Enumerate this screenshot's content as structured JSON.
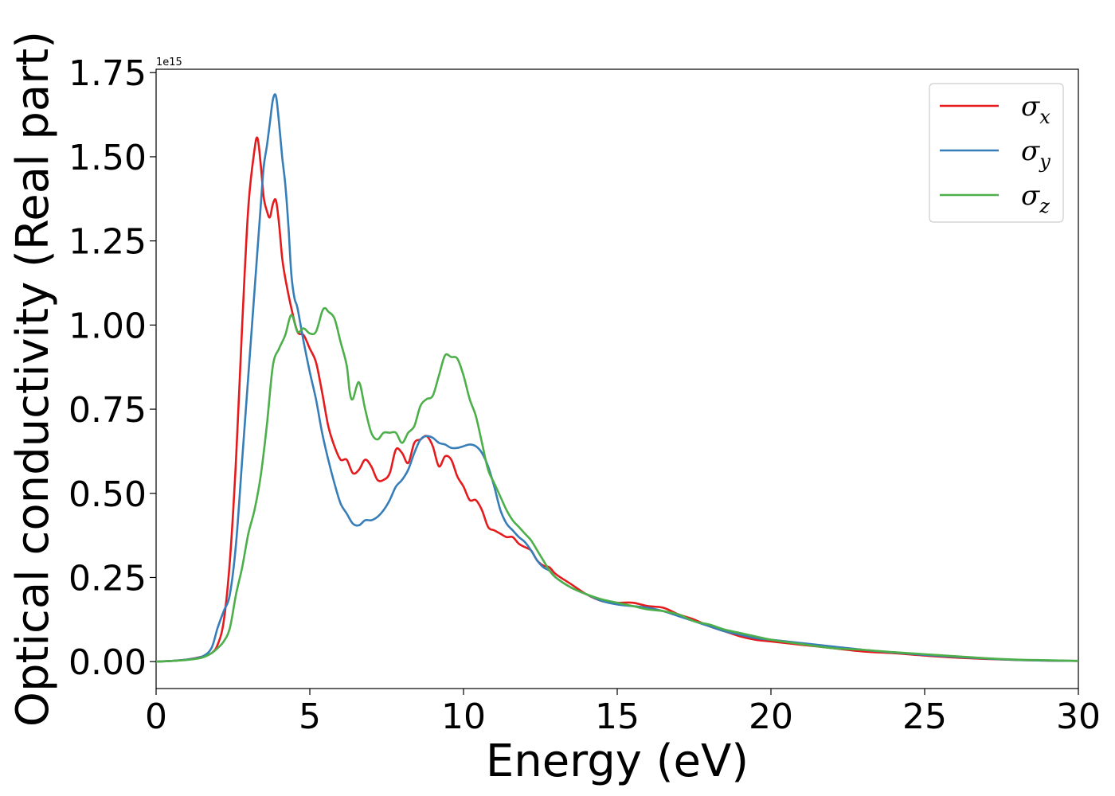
{
  "chart_data": {
    "type": "line",
    "xlabel": "Energy (eV)",
    "ylabel": "Optical conductivity (Real part)",
    "y_offset_text": "1e15",
    "xlim": [
      0,
      30
    ],
    "ylim": [
      -0.08,
      1.76
    ],
    "x_ticks": [
      0,
      5,
      10,
      15,
      20,
      25,
      30
    ],
    "x_tick_labels": [
      "0",
      "5",
      "10",
      "15",
      "20",
      "25",
      "30"
    ],
    "y_ticks": [
      0.0,
      0.25,
      0.5,
      0.75,
      1.0,
      1.25,
      1.5,
      1.75
    ],
    "y_tick_labels": [
      "0.00",
      "0.25",
      "0.50",
      "0.75",
      "1.00",
      "1.25",
      "1.50",
      "1.75"
    ],
    "grid": false,
    "legend_position": "top-right",
    "series": [
      {
        "name": "σx",
        "label_base": "σ",
        "label_sub": "x",
        "color": "#e41a1c",
        "x": [
          0,
          0.5,
          1.0,
          1.5,
          1.8,
          2.0,
          2.2,
          2.4,
          2.6,
          2.8,
          3.0,
          3.2,
          3.3,
          3.4,
          3.5,
          3.6,
          3.7,
          3.8,
          3.9,
          4.0,
          4.1,
          4.2,
          4.4,
          4.6,
          4.8,
          5.0,
          5.2,
          5.4,
          5.6,
          5.8,
          6.0,
          6.2,
          6.4,
          6.6,
          6.8,
          7.0,
          7.2,
          7.4,
          7.6,
          7.8,
          8.0,
          8.2,
          8.4,
          8.6,
          8.8,
          9.0,
          9.2,
          9.4,
          9.6,
          9.8,
          10.0,
          10.2,
          10.4,
          10.6,
          10.8,
          11.0,
          11.2,
          11.4,
          11.6,
          11.8,
          12.0,
          12.2,
          12.4,
          12.6,
          12.8,
          13.0,
          13.5,
          14.0,
          14.5,
          15.0,
          15.5,
          16.0,
          16.5,
          17.0,
          17.5,
          18.0,
          18.5,
          19.0,
          19.5,
          20.0,
          21.0,
          22.0,
          23.0,
          24.0,
          25.0,
          26.0,
          27.0,
          28.0,
          29.0,
          30.0
        ],
        "values": [
          0.0,
          0.002,
          0.006,
          0.015,
          0.025,
          0.05,
          0.12,
          0.3,
          0.6,
          1.0,
          1.35,
          1.52,
          1.555,
          1.48,
          1.38,
          1.34,
          1.32,
          1.36,
          1.37,
          1.3,
          1.2,
          1.14,
          1.05,
          0.98,
          0.97,
          0.93,
          0.89,
          0.8,
          0.7,
          0.64,
          0.6,
          0.6,
          0.56,
          0.57,
          0.6,
          0.58,
          0.54,
          0.54,
          0.56,
          0.63,
          0.62,
          0.59,
          0.65,
          0.66,
          0.67,
          0.64,
          0.58,
          0.61,
          0.6,
          0.55,
          0.52,
          0.48,
          0.48,
          0.45,
          0.4,
          0.39,
          0.38,
          0.37,
          0.37,
          0.35,
          0.34,
          0.33,
          0.3,
          0.285,
          0.28,
          0.26,
          0.23,
          0.2,
          0.18,
          0.175,
          0.175,
          0.165,
          0.16,
          0.14,
          0.125,
          0.105,
          0.09,
          0.075,
          0.065,
          0.06,
          0.05,
          0.04,
          0.03,
          0.025,
          0.018,
          0.012,
          0.008,
          0.005,
          0.003,
          0.002
        ]
      },
      {
        "name": "σy",
        "label_base": "σ",
        "label_sub": "y",
        "color": "#377eb8",
        "x": [
          0,
          0.5,
          1.0,
          1.5,
          1.8,
          2.0,
          2.2,
          2.4,
          2.6,
          2.8,
          3.0,
          3.2,
          3.4,
          3.5,
          3.6,
          3.7,
          3.8,
          3.9,
          4.0,
          4.1,
          4.2,
          4.3,
          4.4,
          4.5,
          4.6,
          4.8,
          5.0,
          5.2,
          5.4,
          5.6,
          5.8,
          6.0,
          6.2,
          6.4,
          6.6,
          6.8,
          7.0,
          7.2,
          7.4,
          7.6,
          7.8,
          8.0,
          8.2,
          8.4,
          8.6,
          8.8,
          9.0,
          9.2,
          9.4,
          9.6,
          9.8,
          10.0,
          10.2,
          10.4,
          10.6,
          10.8,
          11.0,
          11.2,
          11.4,
          11.6,
          11.8,
          12.0,
          12.2,
          12.4,
          12.6,
          12.8,
          13.0,
          13.5,
          14.0,
          14.5,
          15.0,
          15.5,
          16.0,
          16.5,
          17.0,
          17.5,
          18.0,
          18.5,
          19.0,
          19.5,
          20.0,
          21.0,
          22.0,
          23.0,
          24.0,
          25.0,
          26.0,
          27.0,
          28.0,
          29.0,
          30.0
        ],
        "values": [
          0.0,
          0.002,
          0.006,
          0.015,
          0.04,
          0.1,
          0.15,
          0.2,
          0.35,
          0.6,
          0.85,
          1.1,
          1.35,
          1.47,
          1.53,
          1.6,
          1.67,
          1.68,
          1.6,
          1.5,
          1.42,
          1.3,
          1.15,
          1.08,
          1.05,
          0.95,
          0.86,
          0.78,
          0.68,
          0.6,
          0.53,
          0.47,
          0.44,
          0.41,
          0.405,
          0.42,
          0.42,
          0.43,
          0.45,
          0.48,
          0.52,
          0.54,
          0.57,
          0.62,
          0.66,
          0.67,
          0.665,
          0.65,
          0.645,
          0.635,
          0.635,
          0.64,
          0.645,
          0.64,
          0.62,
          0.58,
          0.52,
          0.45,
          0.41,
          0.39,
          0.37,
          0.355,
          0.33,
          0.3,
          0.28,
          0.27,
          0.25,
          0.22,
          0.2,
          0.18,
          0.17,
          0.165,
          0.16,
          0.15,
          0.135,
          0.12,
          0.105,
          0.09,
          0.08,
          0.07,
          0.065,
          0.055,
          0.045,
          0.035,
          0.027,
          0.02,
          0.014,
          0.009,
          0.005,
          0.003,
          0.002
        ]
      },
      {
        "name": "σz",
        "label_base": "σ",
        "label_sub": "z",
        "color": "#4daf4a",
        "x": [
          0,
          0.5,
          1.0,
          1.5,
          1.8,
          2.0,
          2.2,
          2.4,
          2.6,
          2.8,
          3.0,
          3.2,
          3.4,
          3.6,
          3.8,
          4.0,
          4.2,
          4.4,
          4.6,
          4.8,
          5.0,
          5.2,
          5.4,
          5.5,
          5.6,
          5.8,
          6.0,
          6.2,
          6.3,
          6.4,
          6.6,
          6.8,
          7.0,
          7.2,
          7.4,
          7.6,
          7.8,
          8.0,
          8.2,
          8.4,
          8.6,
          8.8,
          9.0,
          9.2,
          9.4,
          9.6,
          9.8,
          10.0,
          10.2,
          10.4,
          10.6,
          10.8,
          11.0,
          11.2,
          11.4,
          11.6,
          11.8,
          12.0,
          12.2,
          12.4,
          12.6,
          12.8,
          13.0,
          13.5,
          14.0,
          14.5,
          15.0,
          15.5,
          16.0,
          16.5,
          17.0,
          17.5,
          18.0,
          18.5,
          19.0,
          19.5,
          20.0,
          21.0,
          22.0,
          23.0,
          24.0,
          25.0,
          26.0,
          27.0,
          28.0,
          29.0,
          30.0
        ],
        "values": [
          0.0,
          0.002,
          0.005,
          0.012,
          0.025,
          0.04,
          0.06,
          0.1,
          0.2,
          0.28,
          0.38,
          0.45,
          0.55,
          0.7,
          0.88,
          0.93,
          0.97,
          1.03,
          0.98,
          0.99,
          0.975,
          0.98,
          1.04,
          1.05,
          1.04,
          1.02,
          0.95,
          0.88,
          0.8,
          0.78,
          0.83,
          0.75,
          0.68,
          0.66,
          0.68,
          0.68,
          0.68,
          0.65,
          0.68,
          0.7,
          0.76,
          0.78,
          0.79,
          0.85,
          0.91,
          0.905,
          0.9,
          0.85,
          0.78,
          0.73,
          0.65,
          0.57,
          0.53,
          0.49,
          0.45,
          0.42,
          0.4,
          0.38,
          0.36,
          0.33,
          0.3,
          0.27,
          0.25,
          0.22,
          0.2,
          0.185,
          0.175,
          0.165,
          0.155,
          0.15,
          0.14,
          0.12,
          0.11,
          0.095,
          0.085,
          0.075,
          0.065,
          0.052,
          0.04,
          0.035,
          0.028,
          0.022,
          0.016,
          0.01,
          0.006,
          0.004,
          0.002
        ]
      }
    ]
  }
}
